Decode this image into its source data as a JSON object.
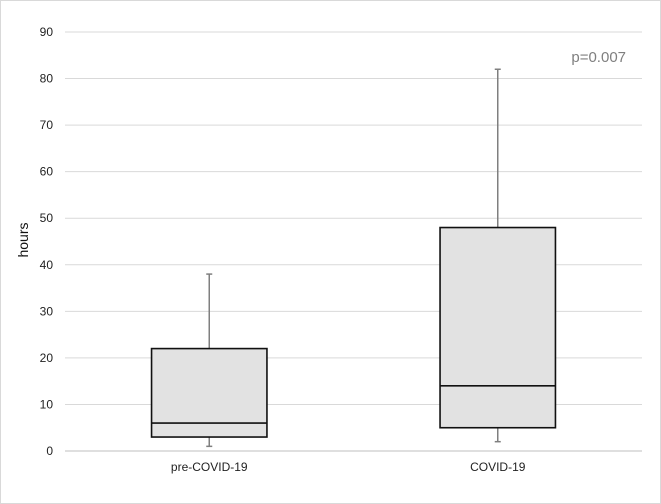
{
  "chart_data": {
    "type": "box",
    "ylabel": "hours",
    "ylim": [
      0,
      90
    ],
    "yticks": [
      0,
      10,
      20,
      30,
      40,
      50,
      60,
      70,
      80,
      90
    ],
    "grid": true,
    "annotation": "p=0.007",
    "categories": [
      "pre-COVID-19",
      "COVID-19"
    ],
    "boxes": [
      {
        "category": "pre-COVID-19",
        "min": 1,
        "q1": 3,
        "median": 6,
        "q3": 22,
        "max": 38
      },
      {
        "category": "COVID-19",
        "min": 2,
        "q1": 5,
        "median": 14,
        "q3": 48,
        "max": 82
      }
    ],
    "colors": {
      "box_fill": "#e2e2e2",
      "box_stroke": "#111111",
      "whisker": "#7f7f7f",
      "grid": "#d9d9d9"
    }
  }
}
